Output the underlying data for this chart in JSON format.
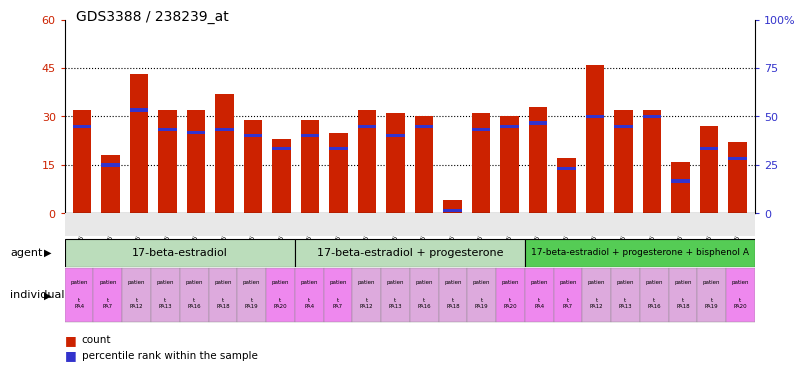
{
  "title": "GDS3388 / 238239_at",
  "samples": [
    "GSM259339",
    "GSM259345",
    "GSM259359",
    "GSM259365",
    "GSM259377",
    "GSM259386",
    "GSM259392",
    "GSM259395",
    "GSM259341",
    "GSM259346",
    "GSM259360",
    "GSM259367",
    "GSM259378",
    "GSM259387",
    "GSM259393",
    "GSM259396",
    "GSM259342",
    "GSM259349",
    "GSM259361",
    "GSM259368",
    "GSM259379",
    "GSM259388",
    "GSM259394",
    "GSM259397"
  ],
  "counts": [
    32,
    18,
    43,
    32,
    32,
    37,
    29,
    23,
    29,
    25,
    32,
    31,
    30,
    4,
    31,
    30,
    33,
    17,
    46,
    32,
    32,
    16,
    27,
    22
  ],
  "percentile_marks": [
    27,
    15,
    32,
    26,
    25,
    26,
    24,
    20,
    24,
    20,
    27,
    24,
    27,
    1,
    26,
    27,
    28,
    14,
    30,
    27,
    30,
    10,
    20,
    17
  ],
  "bar_color": "#cc2200",
  "percentile_color": "#3333cc",
  "group1_label": "17-beta-estradiol",
  "group2_label": "17-beta-estradiol + progesterone",
  "group3_label": "17-beta-estradiol + progesterone + bisphenol A",
  "group1_color": "#bbddbb",
  "group2_color": "#bbddbb",
  "group3_color": "#55cc55",
  "ylim_left": 60,
  "ylim_right": 100,
  "yticks_left": [
    0,
    15,
    30,
    45,
    60
  ],
  "yticks_right": [
    0,
    25,
    50,
    75,
    100
  ],
  "agent_label": "agent",
  "individual_label": "individual",
  "legend_count": "count",
  "legend_percentile": "percentile rank within the sample",
  "ind_labels_short": [
    "t PA4",
    "t PA7",
    "t PA12",
    "t PA13",
    "t PA16",
    "t PA18",
    "t PA19",
    "t PA20"
  ],
  "ind_col_bright": "#ee88ee",
  "ind_col_light": "#ddaadd"
}
